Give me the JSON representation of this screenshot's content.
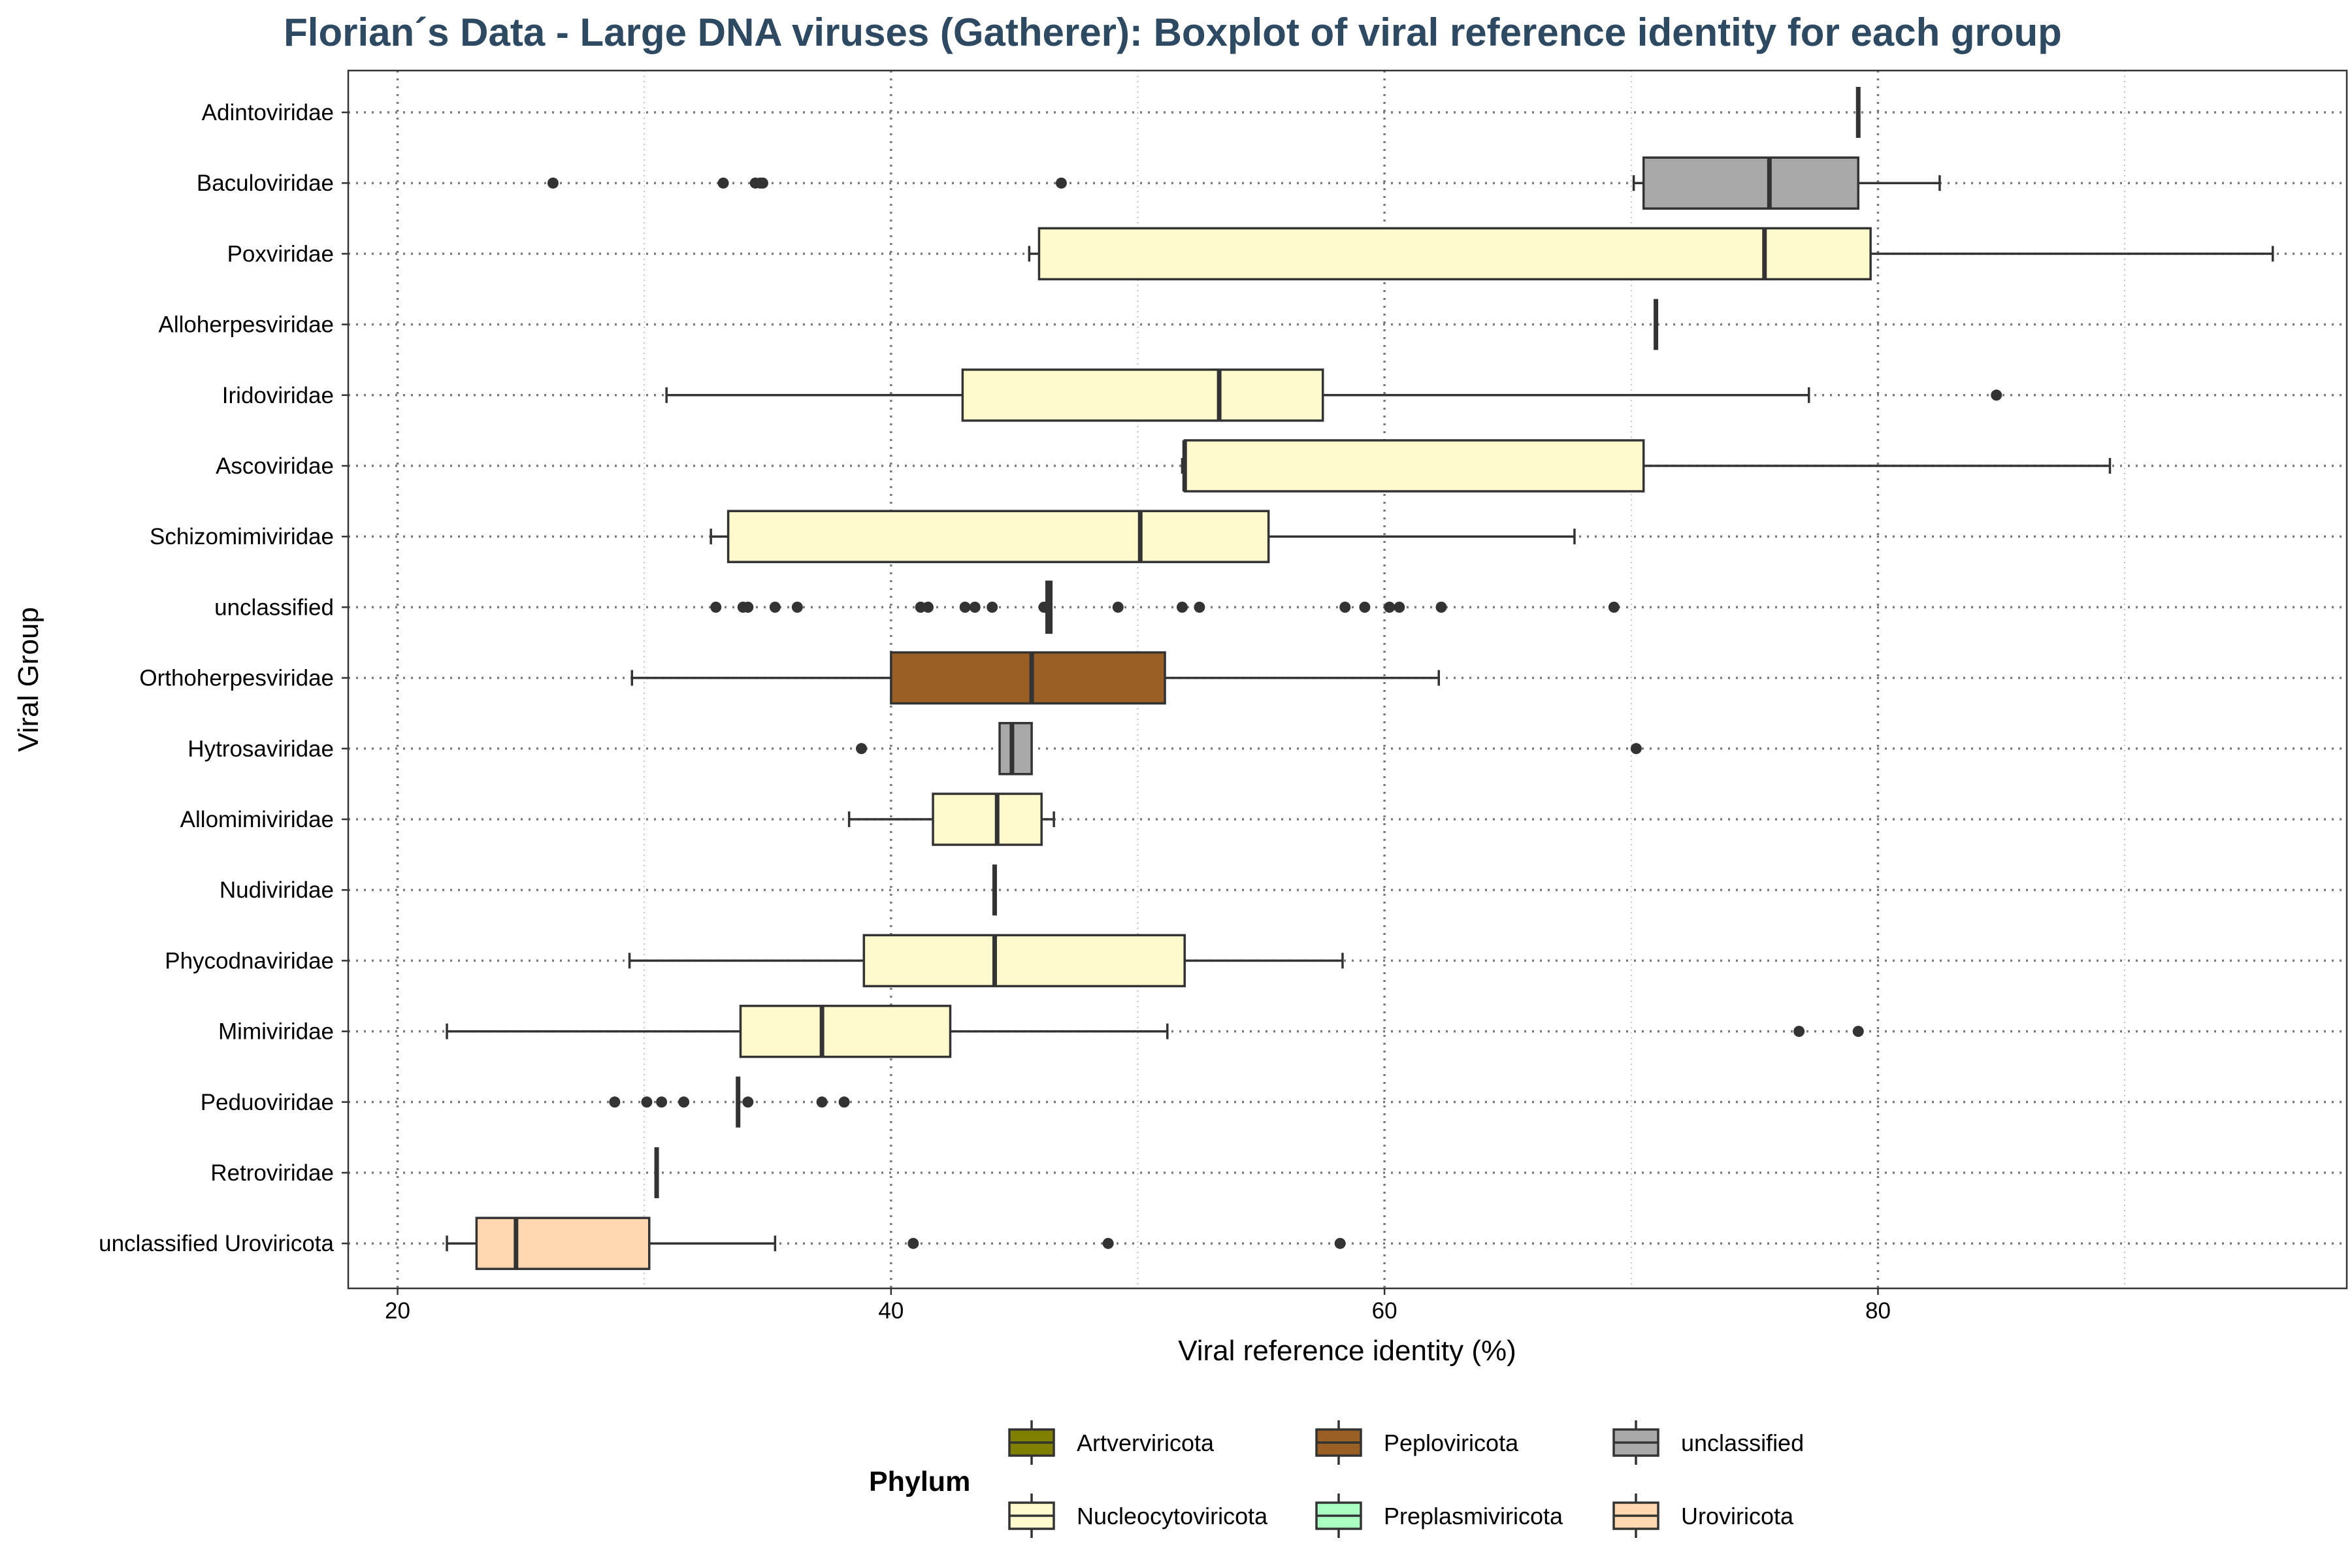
{
  "chart_data": {
    "type": "boxplot",
    "title": "Florian´s Data - Large DNA viruses (Gatherer): Boxplot of viral reference identity for each group",
    "xlabel": "Viral reference identity (%)",
    "ylabel": "Viral Group",
    "xlim": [
      18,
      99
    ],
    "xticks": [
      20,
      40,
      60,
      80
    ],
    "grid": "dotted",
    "orientation": "horizontal",
    "colors": {
      "title": "#2E4A62",
      "Artverviricota": "#808000",
      "Peploviricota": "#9A5F24",
      "unclassified": "#A9A9A9",
      "Nucleocytoviricota": "#FFFACD",
      "Preplasmiviricota": "#AAFFC3",
      "Uroviricota": "#FFD8B1"
    },
    "groups": [
      {
        "name": "Adintoviridae",
        "phylum": "unclassified",
        "whisker_low": 79.2,
        "q1": 79.2,
        "median": 79.2,
        "q3": 79.2,
        "whisker_high": 79.2,
        "outliers": []
      },
      {
        "name": "Baculoviridae",
        "phylum": "unclassified",
        "whisker_low": 70.1,
        "q1": 70.5,
        "median": 75.6,
        "q3": 79.2,
        "whisker_high": 82.5,
        "outliers": [
          26.3,
          33.2,
          34.5,
          34.7,
          34.8,
          46.9
        ]
      },
      {
        "name": "Poxviridae",
        "phylum": "Nucleocytoviricota",
        "whisker_low": 45.6,
        "q1": 46.0,
        "median": 75.4,
        "q3": 79.7,
        "whisker_high": 96.0,
        "outliers": []
      },
      {
        "name": "Alloherpesviridae",
        "phylum": "Peploviricota",
        "whisker_low": 71.0,
        "q1": 71.0,
        "median": 71.0,
        "q3": 71.0,
        "whisker_high": 71.0,
        "outliers": []
      },
      {
        "name": "Iridoviridae",
        "phylum": "Nucleocytoviricota",
        "whisker_low": 30.9,
        "q1": 42.9,
        "median": 53.3,
        "q3": 57.5,
        "whisker_high": 77.2,
        "outliers": [
          84.8
        ]
      },
      {
        "name": "Ascoviridae",
        "phylum": "Nucleocytoviricota",
        "whisker_low": 51.8,
        "q1": 51.9,
        "median": 51.9,
        "q3": 70.5,
        "whisker_high": 89.4,
        "outliers": []
      },
      {
        "name": "Schizomimiviridae",
        "phylum": "Nucleocytoviricota",
        "whisker_low": 32.7,
        "q1": 33.4,
        "median": 50.1,
        "q3": 55.3,
        "whisker_high": 67.7,
        "outliers": []
      },
      {
        "name": "unclassified",
        "phylum": "unclassified",
        "whisker_low": 46.3,
        "q1": 46.3,
        "median": 46.4,
        "q3": 46.5,
        "whisker_high": 46.5,
        "outliers": [
          32.9,
          34.0,
          34.2,
          35.3,
          36.2,
          41.2,
          41.5,
          43.0,
          43.4,
          44.1,
          46.2,
          49.2,
          51.8,
          52.5,
          58.4,
          59.2,
          60.2,
          60.6,
          62.3,
          69.3
        ]
      },
      {
        "name": "Orthoherpesviridae",
        "phylum": "Peploviricota",
        "whisker_low": 29.5,
        "q1": 40.0,
        "median": 45.7,
        "q3": 51.1,
        "whisker_high": 62.2,
        "outliers": []
      },
      {
        "name": "Hytrosaviridae",
        "phylum": "unclassified",
        "whisker_low": 44.4,
        "q1": 44.4,
        "median": 44.9,
        "q3": 45.7,
        "whisker_high": 45.7,
        "outliers": [
          38.8,
          70.2
        ]
      },
      {
        "name": "Allomimiviridae",
        "phylum": "Nucleocytoviricota",
        "whisker_low": 38.3,
        "q1": 41.7,
        "median": 44.3,
        "q3": 46.1,
        "whisker_high": 46.6,
        "outliers": []
      },
      {
        "name": "Nudiviridae",
        "phylum": "unclassified",
        "whisker_low": 44.2,
        "q1": 44.2,
        "median": 44.2,
        "q3": 44.2,
        "whisker_high": 44.2,
        "outliers": []
      },
      {
        "name": "Phycodnaviridae",
        "phylum": "Nucleocytoviricota",
        "whisker_low": 29.4,
        "q1": 38.9,
        "median": 44.2,
        "q3": 51.9,
        "whisker_high": 58.3,
        "outliers": []
      },
      {
        "name": "Mimiviridae",
        "phylum": "Nucleocytoviricota",
        "whisker_low": 22.0,
        "q1": 33.9,
        "median": 37.2,
        "q3": 42.4,
        "whisker_high": 51.2,
        "outliers": [
          76.8,
          79.2
        ]
      },
      {
        "name": "Peduoviridae",
        "phylum": "Uroviricota",
        "whisker_low": 33.8,
        "q1": 33.8,
        "median": 33.8,
        "q3": 33.8,
        "whisker_high": 33.8,
        "outliers": [
          28.8,
          30.1,
          30.7,
          31.6,
          34.2,
          37.2,
          38.1
        ]
      },
      {
        "name": "Retroviridae",
        "phylum": "Artverviricota",
        "whisker_low": 30.5,
        "q1": 30.5,
        "median": 30.5,
        "q3": 30.5,
        "whisker_high": 30.5,
        "outliers": []
      },
      {
        "name": "unclassified Uroviricota",
        "phylum": "Uroviricota",
        "whisker_low": 22.0,
        "q1": 23.2,
        "median": 24.8,
        "q3": 30.2,
        "whisker_high": 35.3,
        "outliers": [
          40.9,
          48.8,
          58.2
        ]
      }
    ],
    "legend": {
      "title": "Phylum",
      "position": "bottom",
      "entries": [
        {
          "label": "Artverviricota",
          "color": "#808000"
        },
        {
          "label": "Peploviricota",
          "color": "#9A5F24"
        },
        {
          "label": "unclassified",
          "color": "#A9A9A9"
        },
        {
          "label": "Nucleocytoviricota",
          "color": "#FFFACD"
        },
        {
          "label": "Preplasmiviricota",
          "color": "#AAFFC3"
        },
        {
          "label": "Uroviricota",
          "color": "#FFD8B1"
        }
      ]
    }
  }
}
